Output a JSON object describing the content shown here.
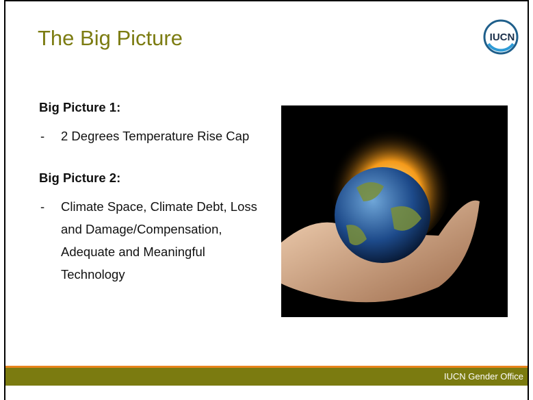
{
  "header": {
    "title": "The Big Picture",
    "logo": "IUCN"
  },
  "sections": [
    {
      "heading": "Big Picture 1:",
      "items": [
        {
          "marker": "-",
          "text": "2 Degrees Temperature Rise Cap"
        }
      ]
    },
    {
      "heading": "Big Picture 2:",
      "items": [
        {
          "marker": "-",
          "text": "Climate Space, Climate Debt, Loss and Damage/Compensation, Adequate and Meaningful Technology"
        }
      ]
    }
  ],
  "footer": {
    "text": "IUCN Gender Office"
  }
}
